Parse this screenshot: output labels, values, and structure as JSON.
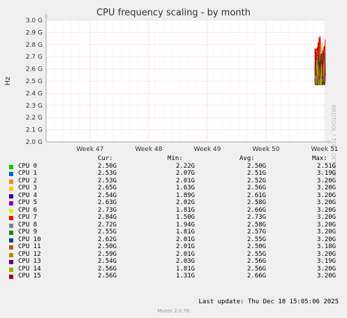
{
  "header": {
    "title": "CPU frequency scaling - by month",
    "side_label": "RRDTOOL / TOBI OETIKER"
  },
  "chart_data": {
    "type": "line",
    "title": "CPU frequency scaling - by month",
    "xlabel": "",
    "ylabel": "Hz",
    "y_ticks": [
      "2.0 G",
      "2.1 G",
      "2.2 G",
      "2.3 G",
      "2.4 G",
      "2.5 G",
      "2.6 G",
      "2.7 G",
      "2.8 G",
      "2.9 G",
      "3.0 G"
    ],
    "ylim": [
      2.0,
      3.0
    ],
    "x_ticks": [
      "Week 47",
      "Week 48",
      "Week 49",
      "Week 50",
      "Week 51"
    ],
    "grid": true,
    "legend_columns": [
      "Cur:",
      "Min:",
      "Avg:",
      "Max:"
    ],
    "series": [
      {
        "name": "CPU 0",
        "color": "#00cc00",
        "cur": "2.50G",
        "min": "2.22G",
        "avg": "2.50G",
        "max": "2.51G"
      },
      {
        "name": "CPU 1",
        "color": "#0066b3",
        "cur": "2.53G",
        "min": "2.07G",
        "avg": "2.51G",
        "max": "3.19G"
      },
      {
        "name": "CPU 2",
        "color": "#ff8000",
        "cur": "2.53G",
        "min": "2.01G",
        "avg": "2.52G",
        "max": "3.20G"
      },
      {
        "name": "CPU 3",
        "color": "#ffcc00",
        "cur": "2.65G",
        "min": "1.63G",
        "avg": "2.56G",
        "max": "3.20G"
      },
      {
        "name": "CPU 4",
        "color": "#330099",
        "cur": "2.54G",
        "min": "1.89G",
        "avg": "2.61G",
        "max": "3.20G"
      },
      {
        "name": "CPU 5",
        "color": "#990099",
        "cur": "2.63G",
        "min": "2.02G",
        "avg": "2.58G",
        "max": "3.20G"
      },
      {
        "name": "CPU 6",
        "color": "#ccff00",
        "cur": "2.73G",
        "min": "1.81G",
        "avg": "2.66G",
        "max": "3.20G"
      },
      {
        "name": "CPU 7",
        "color": "#ff0000",
        "cur": "2.84G",
        "min": "1.50G",
        "avg": "2.73G",
        "max": "3.20G"
      },
      {
        "name": "CPU 8",
        "color": "#808080",
        "cur": "2.72G",
        "min": "1.94G",
        "avg": "2.58G",
        "max": "3.20G"
      },
      {
        "name": "CPU 9",
        "color": "#008f00",
        "cur": "2.55G",
        "min": "1.81G",
        "avg": "2.57G",
        "max": "3.20G"
      },
      {
        "name": "CPU 10",
        "color": "#00487d",
        "cur": "2.62G",
        "min": "2.01G",
        "avg": "2.55G",
        "max": "3.20G"
      },
      {
        "name": "CPU 11",
        "color": "#b35a00",
        "cur": "2.50G",
        "min": "2.01G",
        "avg": "2.50G",
        "max": "3.18G"
      },
      {
        "name": "CPU 12",
        "color": "#b38f00",
        "cur": "2.59G",
        "min": "2.01G",
        "avg": "2.55G",
        "max": "3.20G"
      },
      {
        "name": "CPU 13",
        "color": "#6b006b",
        "cur": "2.54G",
        "min": "2.03G",
        "avg": "2.56G",
        "max": "3.19G"
      },
      {
        "name": "CPU 14",
        "color": "#8fb300",
        "cur": "2.56G",
        "min": "1.81G",
        "avg": "2.56G",
        "max": "3.20G"
      },
      {
        "name": "CPU 15",
        "color": "#b30000",
        "cur": "2.56G",
        "min": "1.31G",
        "avg": "2.66G",
        "max": "3.20G"
      }
    ]
  },
  "footer": {
    "last_update": "Last update: Thu Dec 18 15:05:06 2025",
    "munin": "Munin 2.0.76"
  }
}
